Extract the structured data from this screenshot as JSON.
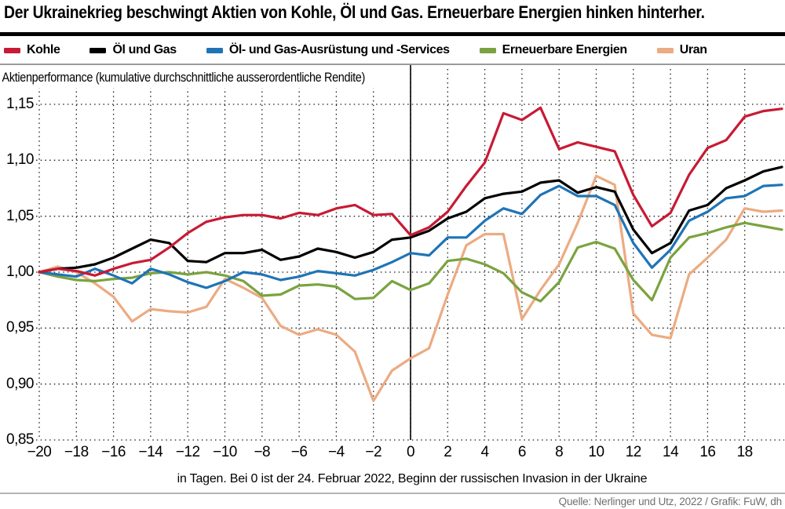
{
  "header": {
    "title": "Der Ukrainekrieg beschwingt Aktien von Kohle, Öl und Gas. Erneuerbare Energien hinken hinterher."
  },
  "legend": {
    "items": [
      {
        "label": "Kohle",
        "color": "#c81a34"
      },
      {
        "label": "Öl und Gas",
        "color": "#000000"
      },
      {
        "label": "Öl- und Gas-Ausrüstung und -Services",
        "color": "#1f74b6"
      },
      {
        "label": "Erneuerbare Energien",
        "color": "#7aa33f"
      },
      {
        "label": "Uran",
        "color": "#ecab82"
      }
    ]
  },
  "axes": {
    "y_axis_label": "Aktienperformance (kumulative durchschnittliche ausserordentliche Rendite)",
    "x_caption": "in Tagen. Bei 0 ist der 24. Februar 2022, Beginn der russischen Invasion in der Ukraine"
  },
  "footer": {
    "source": "Quelle: Nerlinger und Utz, 2022 / Grafik: FuW, dh"
  },
  "chart_data": {
    "type": "line",
    "title": "Der Ukrainekrieg beschwingt Aktien von Kohle, Öl und Gas. Erneuerbare Energien hinken hinterher.",
    "ylabel": "Aktienperformance (kumulative durchschnittliche ausserordentliche Rendite)",
    "xlabel": "in Tagen. Bei 0 ist der 24. Februar 2022, Beginn der russischen Invasion in der Ukraine",
    "grid": "dotted",
    "legend_position": "top",
    "event_line_x": 0,
    "ylim": [
      0.85,
      1.15
    ],
    "yticks": [
      1.15,
      1.1,
      1.05,
      1.0,
      0.95,
      0.9,
      0.85
    ],
    "xticks": [
      -20,
      -18,
      -16,
      -14,
      -12,
      -10,
      -8,
      -6,
      -4,
      -2,
      0,
      2,
      4,
      6,
      8,
      10,
      12,
      14,
      16,
      18
    ],
    "x": [
      -20,
      -19,
      -18,
      -17,
      -16,
      -15,
      -14,
      -13,
      -12,
      -11,
      -10,
      -9,
      -8,
      -7,
      -6,
      -5,
      -4,
      -3,
      -2,
      -1,
      0,
      1,
      2,
      3,
      4,
      5,
      6,
      7,
      8,
      9,
      10,
      11,
      12,
      13,
      14,
      15,
      16,
      17,
      18,
      19,
      20
    ],
    "series": [
      {
        "name": "Kohle",
        "color": "#c81a34",
        "values": [
          1.0,
          1.003,
          1.001,
          0.997,
          1.003,
          1.008,
          1.011,
          1.022,
          1.035,
          1.045,
          1.049,
          1.051,
          1.051,
          1.048,
          1.053,
          1.051,
          1.057,
          1.06,
          1.051,
          1.052,
          1.033,
          1.04,
          1.054,
          1.077,
          1.098,
          1.142,
          1.136,
          1.147,
          1.11,
          1.116,
          1.112,
          1.108,
          1.069,
          1.041,
          1.053,
          1.087,
          1.111,
          1.118,
          1.139,
          1.144,
          1.146
        ]
      },
      {
        "name": "Öl und Gas",
        "color": "#000000",
        "values": [
          1.0,
          1.003,
          1.004,
          1.007,
          1.013,
          1.021,
          1.029,
          1.026,
          1.01,
          1.009,
          1.017,
          1.017,
          1.02,
          1.011,
          1.014,
          1.021,
          1.018,
          1.013,
          1.018,
          1.029,
          1.031,
          1.037,
          1.048,
          1.054,
          1.066,
          1.07,
          1.072,
          1.08,
          1.082,
          1.071,
          1.076,
          1.072,
          1.038,
          1.017,
          1.026,
          1.055,
          1.06,
          1.075,
          1.082,
          1.09,
          1.094
        ]
      },
      {
        "name": "Öl- und Gas-Ausrüstung und -Services",
        "color": "#1f74b6",
        "values": [
          1.0,
          0.998,
          0.996,
          1.003,
          0.997,
          0.99,
          1.003,
          0.998,
          0.991,
          0.986,
          0.992,
          1.0,
          0.998,
          0.993,
          0.996,
          1.001,
          0.999,
          0.997,
          1.002,
          1.009,
          1.017,
          1.015,
          1.031,
          1.031,
          1.046,
          1.057,
          1.052,
          1.069,
          1.077,
          1.068,
          1.068,
          1.06,
          1.026,
          1.004,
          1.02,
          1.046,
          1.054,
          1.066,
          1.068,
          1.077,
          1.078
        ]
      },
      {
        "name": "Erneuerbare Energien",
        "color": "#7aa33f",
        "values": [
          1.0,
          0.996,
          0.993,
          0.992,
          0.994,
          0.995,
          0.999,
          1.0,
          0.998,
          1.0,
          0.997,
          0.992,
          0.979,
          0.98,
          0.988,
          0.989,
          0.987,
          0.976,
          0.977,
          0.992,
          0.984,
          0.99,
          1.01,
          1.012,
          1.007,
          0.999,
          0.982,
          0.974,
          0.991,
          1.022,
          1.027,
          1.021,
          0.993,
          0.975,
          1.013,
          1.031,
          1.035,
          1.04,
          1.044,
          1.041,
          1.038
        ]
      },
      {
        "name": "Uran",
        "color": "#ecab82",
        "values": [
          1.0,
          1.005,
          1.0,
          0.99,
          0.978,
          0.956,
          0.967,
          0.965,
          0.964,
          0.969,
          0.994,
          0.986,
          0.977,
          0.952,
          0.944,
          0.949,
          0.944,
          0.929,
          0.885,
          0.912,
          0.923,
          0.932,
          0.98,
          1.024,
          1.034,
          1.034,
          0.958,
          0.984,
          1.007,
          1.044,
          1.086,
          1.078,
          0.963,
          0.944,
          0.941,
          0.998,
          1.013,
          1.029,
          1.057,
          1.054,
          1.055
        ]
      }
    ]
  }
}
